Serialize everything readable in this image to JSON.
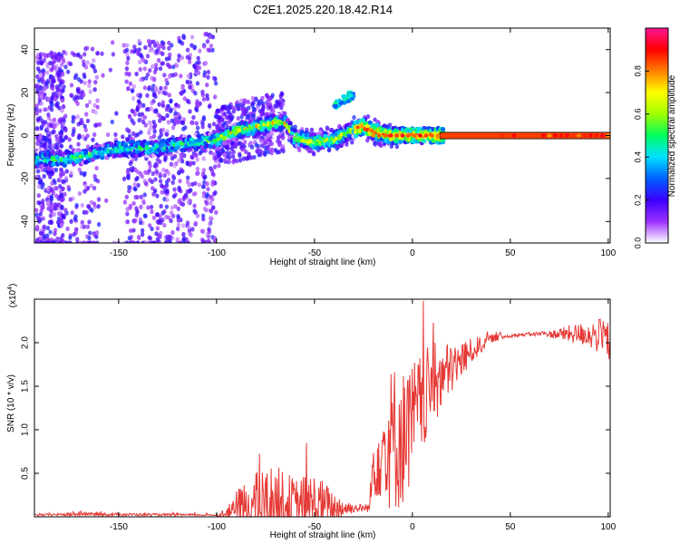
{
  "title": "C2E1.2025.220.18.42.R14",
  "chart_data": [
    {
      "type": "heatmap",
      "xlabel": "Height of straight line (km)",
      "ylabel": "Frequency (Hz)",
      "xlim": [
        -193,
        101
      ],
      "ylim": [
        -50,
        50
      ],
      "x_ticks": [
        -150,
        -100,
        -50,
        0,
        50,
        100
      ],
      "y_ticks": [
        -40,
        -20,
        0,
        20,
        40
      ],
      "x_tick_labels": [
        "-150",
        "-100",
        "-50",
        "0",
        "50",
        "100"
      ],
      "y_tick_labels": [
        "-40",
        "-20",
        "0",
        "20",
        "40"
      ],
      "colorbar": {
        "label": "Normalized spectral amplitude",
        "range": [
          0,
          1
        ],
        "ticks": [
          0.0,
          0.2,
          0.4,
          0.6,
          0.8
        ],
        "tick_labels": [
          "0.0",
          "0.2",
          "0.4",
          "0.6",
          "0.8"
        ],
        "colors": [
          "#ffffff",
          "#9b30ff",
          "#3c00ff",
          "#0060ff",
          "#00e0ff",
          "#00ff60",
          "#a0ff00",
          "#ffff00",
          "#ff8000",
          "#ff0000",
          "#ff1493"
        ]
      },
      "ridge": {
        "x": [
          -190,
          -180,
          -170,
          -160,
          -150,
          -140,
          -130,
          -120,
          -110,
          -100,
          -90,
          -80,
          -70,
          -65,
          -60,
          -50,
          -40,
          -30,
          -25,
          -20,
          -10,
          0,
          10,
          20,
          50,
          80,
          101
        ],
        "y": [
          -11,
          -11,
          -10,
          -8,
          -6,
          -6,
          -6,
          -4,
          -3,
          -2,
          2,
          4,
          6,
          6,
          -1,
          -3,
          -2,
          3,
          4,
          2,
          0,
          0,
          0,
          0,
          0,
          0,
          0
        ]
      },
      "side_feature": {
        "x": [
          -40,
          -35,
          -30
        ],
        "y": [
          14,
          17,
          19
        ]
      }
    },
    {
      "type": "line",
      "xlabel": "Height of straight line (km)",
      "ylabel": "SNR (10 * v/v)",
      "scale_label": "(x10",
      "scale_exponent": "4",
      "xlim": [
        -193,
        101
      ],
      "ylim": [
        0,
        2.5
      ],
      "x_ticks": [
        -150,
        -100,
        -50,
        0,
        50,
        100
      ],
      "y_ticks": [
        0.5,
        1.0,
        1.5,
        2.0
      ],
      "x_tick_labels": [
        "-150",
        "-100",
        "-50",
        "0",
        "50",
        "100"
      ],
      "y_tick_labels": [
        "0.5",
        "1.0",
        "1.5",
        "2.0"
      ],
      "color": "#e53935",
      "envelope": {
        "x": [
          -193,
          -170,
          -100,
          -95,
          -90,
          -80,
          -70,
          -60,
          -50,
          -40,
          -30,
          -25,
          -22,
          -20,
          -15,
          -10,
          -5,
          0,
          5,
          10,
          15,
          20,
          30,
          40,
          50,
          60,
          70,
          80,
          90,
          100,
          101
        ],
        "base": [
          0.02,
          0.03,
          0.02,
          0.03,
          0.1,
          0.12,
          0.15,
          0.1,
          0.12,
          0.1,
          0.1,
          0.1,
          0.1,
          0.6,
          0.8,
          0.9,
          0.9,
          1.1,
          1.3,
          1.5,
          1.6,
          1.7,
          1.9,
          2.05,
          2.08,
          2.1,
          2.1,
          2.1,
          2.1,
          2.05,
          1.6
        ],
        "amplitude": [
          0.01,
          0.02,
          0.01,
          0.05,
          0.2,
          0.4,
          0.45,
          0.35,
          0.4,
          0.2,
          0.05,
          0.05,
          0.05,
          0.4,
          0.6,
          0.9,
          0.8,
          0.7,
          0.6,
          0.5,
          0.4,
          0.3,
          0.15,
          0.05,
          0.02,
          0.02,
          0.04,
          0.1,
          0.15,
          0.25,
          0.3
        ]
      }
    }
  ]
}
